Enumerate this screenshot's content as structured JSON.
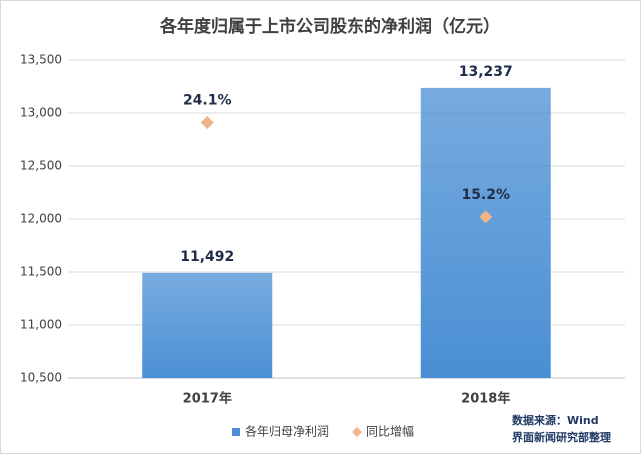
{
  "chart_data": {
    "type": "bar",
    "title": "各年度归属于上市公司股东的净利润（亿元）",
    "categories": [
      "2017年",
      "2018年"
    ],
    "series": [
      {
        "name": "各年归母净利润",
        "type": "bar",
        "color": "#4a8fd4",
        "values": [
          11492,
          13237
        ],
        "value_labels": [
          "11,492",
          "13,237"
        ]
      },
      {
        "name": "同比增幅",
        "type": "scatter",
        "axis": "y2",
        "color": "#f0b48a",
        "values": [
          24.1,
          15.2
        ],
        "value_labels": [
          "24.1%",
          "15.2%"
        ]
      }
    ],
    "ylim": [
      10500,
      13500
    ],
    "yticks": [
      {
        "value": 10500,
        "label": "10,500"
      },
      {
        "value": 11000,
        "label": "11,000"
      },
      {
        "value": 11500,
        "label": "11,500"
      },
      {
        "value": 12000,
        "label": "12,000"
      },
      {
        "value": 12500,
        "label": "12,500"
      },
      {
        "value": 13000,
        "label": "13,000"
      },
      {
        "value": 13500,
        "label": "13,500"
      }
    ],
    "y2lim": [
      0,
      30
    ],
    "grid": true,
    "legend": "bottom",
    "source": [
      "数据来源：Wind",
      "界面新闻研究部整理"
    ]
  }
}
